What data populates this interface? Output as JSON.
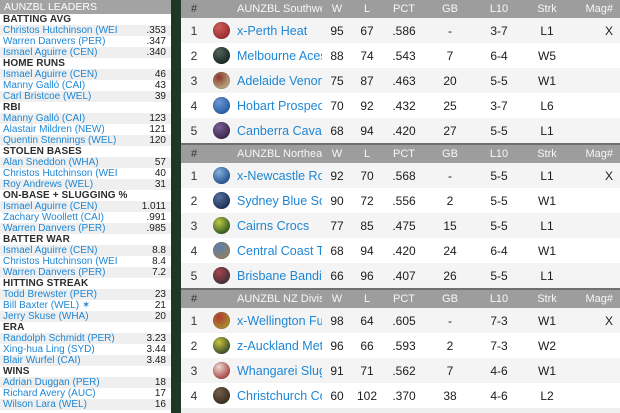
{
  "colors": {
    "link": "#1e87d5",
    "table_header_bg": "#9d9d9d",
    "sidebar_title_bg": "#a3a3a3",
    "row_stripe": "#f4f4f4",
    "background_green": "#2a4d2e"
  },
  "sidebar": {
    "title": "AUNZBL LEADERS",
    "sections": [
      {
        "header": "BATTING AVG",
        "leaders": [
          {
            "name": "Christos Hutchinson (WEI",
            "value": ".353"
          },
          {
            "name": "Warren Danvers (PER)",
            "value": ".347"
          },
          {
            "name": "Ismael Aguirre (CEN)",
            "value": ".340"
          }
        ]
      },
      {
        "header": "HOME RUNS",
        "leaders": [
          {
            "name": "Ismael Aguirre (CEN)",
            "value": "46"
          },
          {
            "name": "Manny Galló (CAI)",
            "value": "43"
          },
          {
            "name": "Carl Bristcoe (WEL)",
            "value": "39"
          }
        ]
      },
      {
        "header": "RBI",
        "leaders": [
          {
            "name": "Manny Galló (CAI)",
            "value": "123"
          },
          {
            "name": "Alastair Mildren (NEW)",
            "value": "121"
          },
          {
            "name": "Quentin Stennings (WEL)",
            "value": "120"
          }
        ]
      },
      {
        "header": "STOLEN BASES",
        "leaders": [
          {
            "name": "Alan Sneddon (WHA)",
            "value": "57"
          },
          {
            "name": "Christos Hutchinson (WEI",
            "value": "40"
          },
          {
            "name": "Roy Andrews (WEL)",
            "value": "31"
          }
        ]
      },
      {
        "header": "ON-BASE + SLUGGING %",
        "leaders": [
          {
            "name": "Ismael Aguirre (CEN)",
            "value": "1.011"
          },
          {
            "name": "Zachary Woollett (CAI)",
            "value": ".991"
          },
          {
            "name": "Warren Danvers (PER)",
            "value": ".985"
          }
        ]
      },
      {
        "header": "BATTER WAR",
        "leaders": [
          {
            "name": "Ismael Aguirre (CEN)",
            "value": "8.8"
          },
          {
            "name": "Christos Hutchinson (WEI",
            "value": "8.4"
          },
          {
            "name": "Warren Danvers (PER)",
            "value": "7.2"
          }
        ]
      },
      {
        "header": "HITTING STREAK",
        "leaders": [
          {
            "name": "Todd Brewster (PER)",
            "value": "23"
          },
          {
            "name": "Bill Baxter (WEL) ✶",
            "value": "21"
          },
          {
            "name": "Jerry Skuse (WHA)",
            "value": "20"
          }
        ]
      },
      {
        "header": "ERA",
        "leaders": [
          {
            "name": "Randolph Schmidt (PER)",
            "value": "3.23"
          },
          {
            "name": "Xing-hua Ling (SYD)",
            "value": "3.44"
          },
          {
            "name": "Blair Wurfel (CAI)",
            "value": "3.48"
          }
        ]
      },
      {
        "header": "WINS",
        "leaders": [
          {
            "name": "Adrian Duggan (PER)",
            "value": "18"
          },
          {
            "name": "Richard Avery (AUC)",
            "value": "17"
          },
          {
            "name": "Wilson Lara (WEL)",
            "value": "16"
          }
        ]
      }
    ]
  },
  "standings": {
    "columns": {
      "rank": "#",
      "w": "W",
      "l": "L",
      "pct": "PCT",
      "gb": "GB",
      "l10": "L10",
      "strk": "Strk",
      "mag": "Mag#"
    },
    "divisions": [
      {
        "title": "AUNZBL Southwest Division",
        "teams": [
          {
            "rank": "1",
            "name": "x-Perth Heat",
            "w": "95",
            "l": "67",
            "pct": ".586",
            "gb": "-",
            "l10": "3-7",
            "strk": "L1",
            "mag": "X",
            "logo": {
              "outer": "#9e2f35",
              "inner": "#cf5f58"
            }
          },
          {
            "rank": "2",
            "name": "Melbourne Aces",
            "w": "88",
            "l": "74",
            "pct": ".543",
            "gb": "7",
            "l10": "6-4",
            "strk": "W5",
            "mag": "",
            "logo": {
              "outer": "#1f2d26",
              "inner": "#50655a"
            }
          },
          {
            "rank": "3",
            "name": "Adelaide Venom",
            "w": "75",
            "l": "87",
            "pct": ".463",
            "gb": "20",
            "l10": "5-5",
            "strk": "W1",
            "mag": "",
            "logo": {
              "outer": "#b3a078",
              "inner": "#8c3530"
            }
          },
          {
            "rank": "4",
            "name": "Hobart Prospects",
            "w": "70",
            "l": "92",
            "pct": ".432",
            "gb": "25",
            "l10": "3-7",
            "strk": "L6",
            "mag": "",
            "logo": {
              "outer": "#2d62a8",
              "inner": "#6b97d4"
            }
          },
          {
            "rank": "5",
            "name": "Canberra Cavalry",
            "w": "68",
            "l": "94",
            "pct": ".420",
            "gb": "27",
            "l10": "5-5",
            "strk": "L1",
            "mag": "",
            "logo": {
              "outer": "#412d52",
              "inner": "#7a5f95"
            }
          }
        ]
      },
      {
        "title": "AUNZBL Northeast Division",
        "teams": [
          {
            "rank": "1",
            "name": "x-Newcastle Roos",
            "w": "92",
            "l": "70",
            "pct": ".568",
            "gb": "-",
            "l10": "5-5",
            "strk": "L1",
            "mag": "X",
            "logo": {
              "outer": "#2f5a96",
              "inner": "#84afdd"
            }
          },
          {
            "rank": "2",
            "name": "Sydney Blue Sox",
            "w": "90",
            "l": "72",
            "pct": ".556",
            "gb": "2",
            "l10": "5-5",
            "strk": "W1",
            "mag": "",
            "logo": {
              "outer": "#23355c",
              "inner": "#56719f"
            }
          },
          {
            "rank": "3",
            "name": "Cairns Crocs",
            "w": "77",
            "l": "85",
            "pct": ".475",
            "gb": "15",
            "l10": "5-5",
            "strk": "L1",
            "mag": "",
            "logo": {
              "outer": "#3f6326",
              "inner": "#bcc944"
            }
          },
          {
            "rank": "4",
            "name": "Central Coast Thunder",
            "w": "68",
            "l": "94",
            "pct": ".420",
            "gb": "24",
            "l10": "6-4",
            "strk": "W1",
            "mag": "",
            "logo": {
              "outer": "#8c8068",
              "inner": "#5a7fae"
            }
          },
          {
            "rank": "5",
            "name": "Brisbane Bandits",
            "w": "66",
            "l": "96",
            "pct": ".407",
            "gb": "26",
            "l10": "5-5",
            "strk": "L1",
            "mag": "",
            "logo": {
              "outer": "#4a3338",
              "inner": "#a8444c"
            }
          }
        ]
      },
      {
        "title": "AUNZBL NZ Division",
        "teams": [
          {
            "rank": "1",
            "name": "x-Wellington Fury",
            "w": "98",
            "l": "64",
            "pct": ".605",
            "gb": "-",
            "l10": "7-3",
            "strk": "W1",
            "mag": "X",
            "logo": {
              "outer": "#a8862f",
              "inner": "#b03a30"
            }
          },
          {
            "rank": "2",
            "name": "z-Auckland Metros",
            "w": "96",
            "l": "66",
            "pct": ".593",
            "gb": "2",
            "l10": "7-3",
            "strk": "W2",
            "mag": "",
            "logo": {
              "outer": "#44582a",
              "inner": "#c9c23f"
            }
          },
          {
            "rank": "3",
            "name": "Whangarei Sluggers",
            "w": "91",
            "l": "71",
            "pct": ".562",
            "gb": "7",
            "l10": "4-6",
            "strk": "W1",
            "mag": "",
            "logo": {
              "outer": "#b05050",
              "inner": "#ecdcd2"
            }
          },
          {
            "rank": "4",
            "name": "Christchurch Cowboys",
            "w": "60",
            "l": "102",
            "pct": ".370",
            "gb": "38",
            "l10": "4-6",
            "strk": "L2",
            "mag": "",
            "logo": {
              "outer": "#3d3222",
              "inner": "#74604a"
            }
          }
        ]
      }
    ]
  }
}
